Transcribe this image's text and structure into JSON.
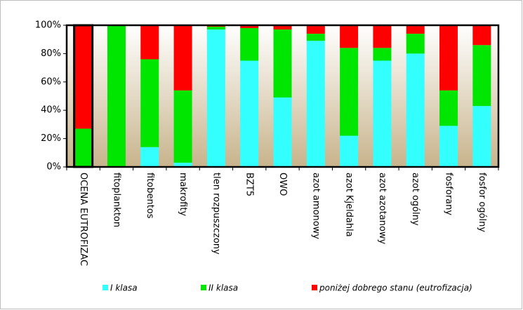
{
  "chart_data": {
    "type": "stacked_bar",
    "categories": [
      "OCENA EUTROFIZAC",
      "fitoplankton",
      "fitobentos",
      "makrofity",
      "tlen rozpuszczony",
      "BZT5",
      "OWO",
      "azot amonowy",
      "azot Kjeldahla",
      "azot azotanowy",
      "azot ogólny",
      "fosforany",
      "fosfor ogólny"
    ],
    "series": [
      {
        "name": "I klasa",
        "color": "#33ffff",
        "values": [
          0,
          0,
          14,
          3,
          97,
          75,
          49,
          89,
          22,
          75,
          80,
          29,
          43
        ]
      },
      {
        "name": "II klasa",
        "color": "#00e600",
        "values": [
          27,
          100,
          62,
          51,
          2,
          23,
          48,
          5,
          62,
          9,
          14,
          25,
          43
        ]
      },
      {
        "name": "poniżej dobrego stanu (eutrofizacja)",
        "color": "#ff0000",
        "values": [
          73,
          0,
          24,
          46,
          1,
          2,
          3,
          6,
          16,
          16,
          6,
          46,
          14
        ]
      }
    ],
    "ylim": [
      0,
      100
    ],
    "yticks": [
      {
        "value": 0,
        "label": "0%"
      },
      {
        "value": 20,
        "label": "20%"
      },
      {
        "value": 40,
        "label": "40%"
      },
      {
        "value": 60,
        "label": "60%"
      },
      {
        "value": 80,
        "label": "80%"
      },
      {
        "value": 100,
        "label": "100%"
      }
    ],
    "legend": "bottom"
  }
}
